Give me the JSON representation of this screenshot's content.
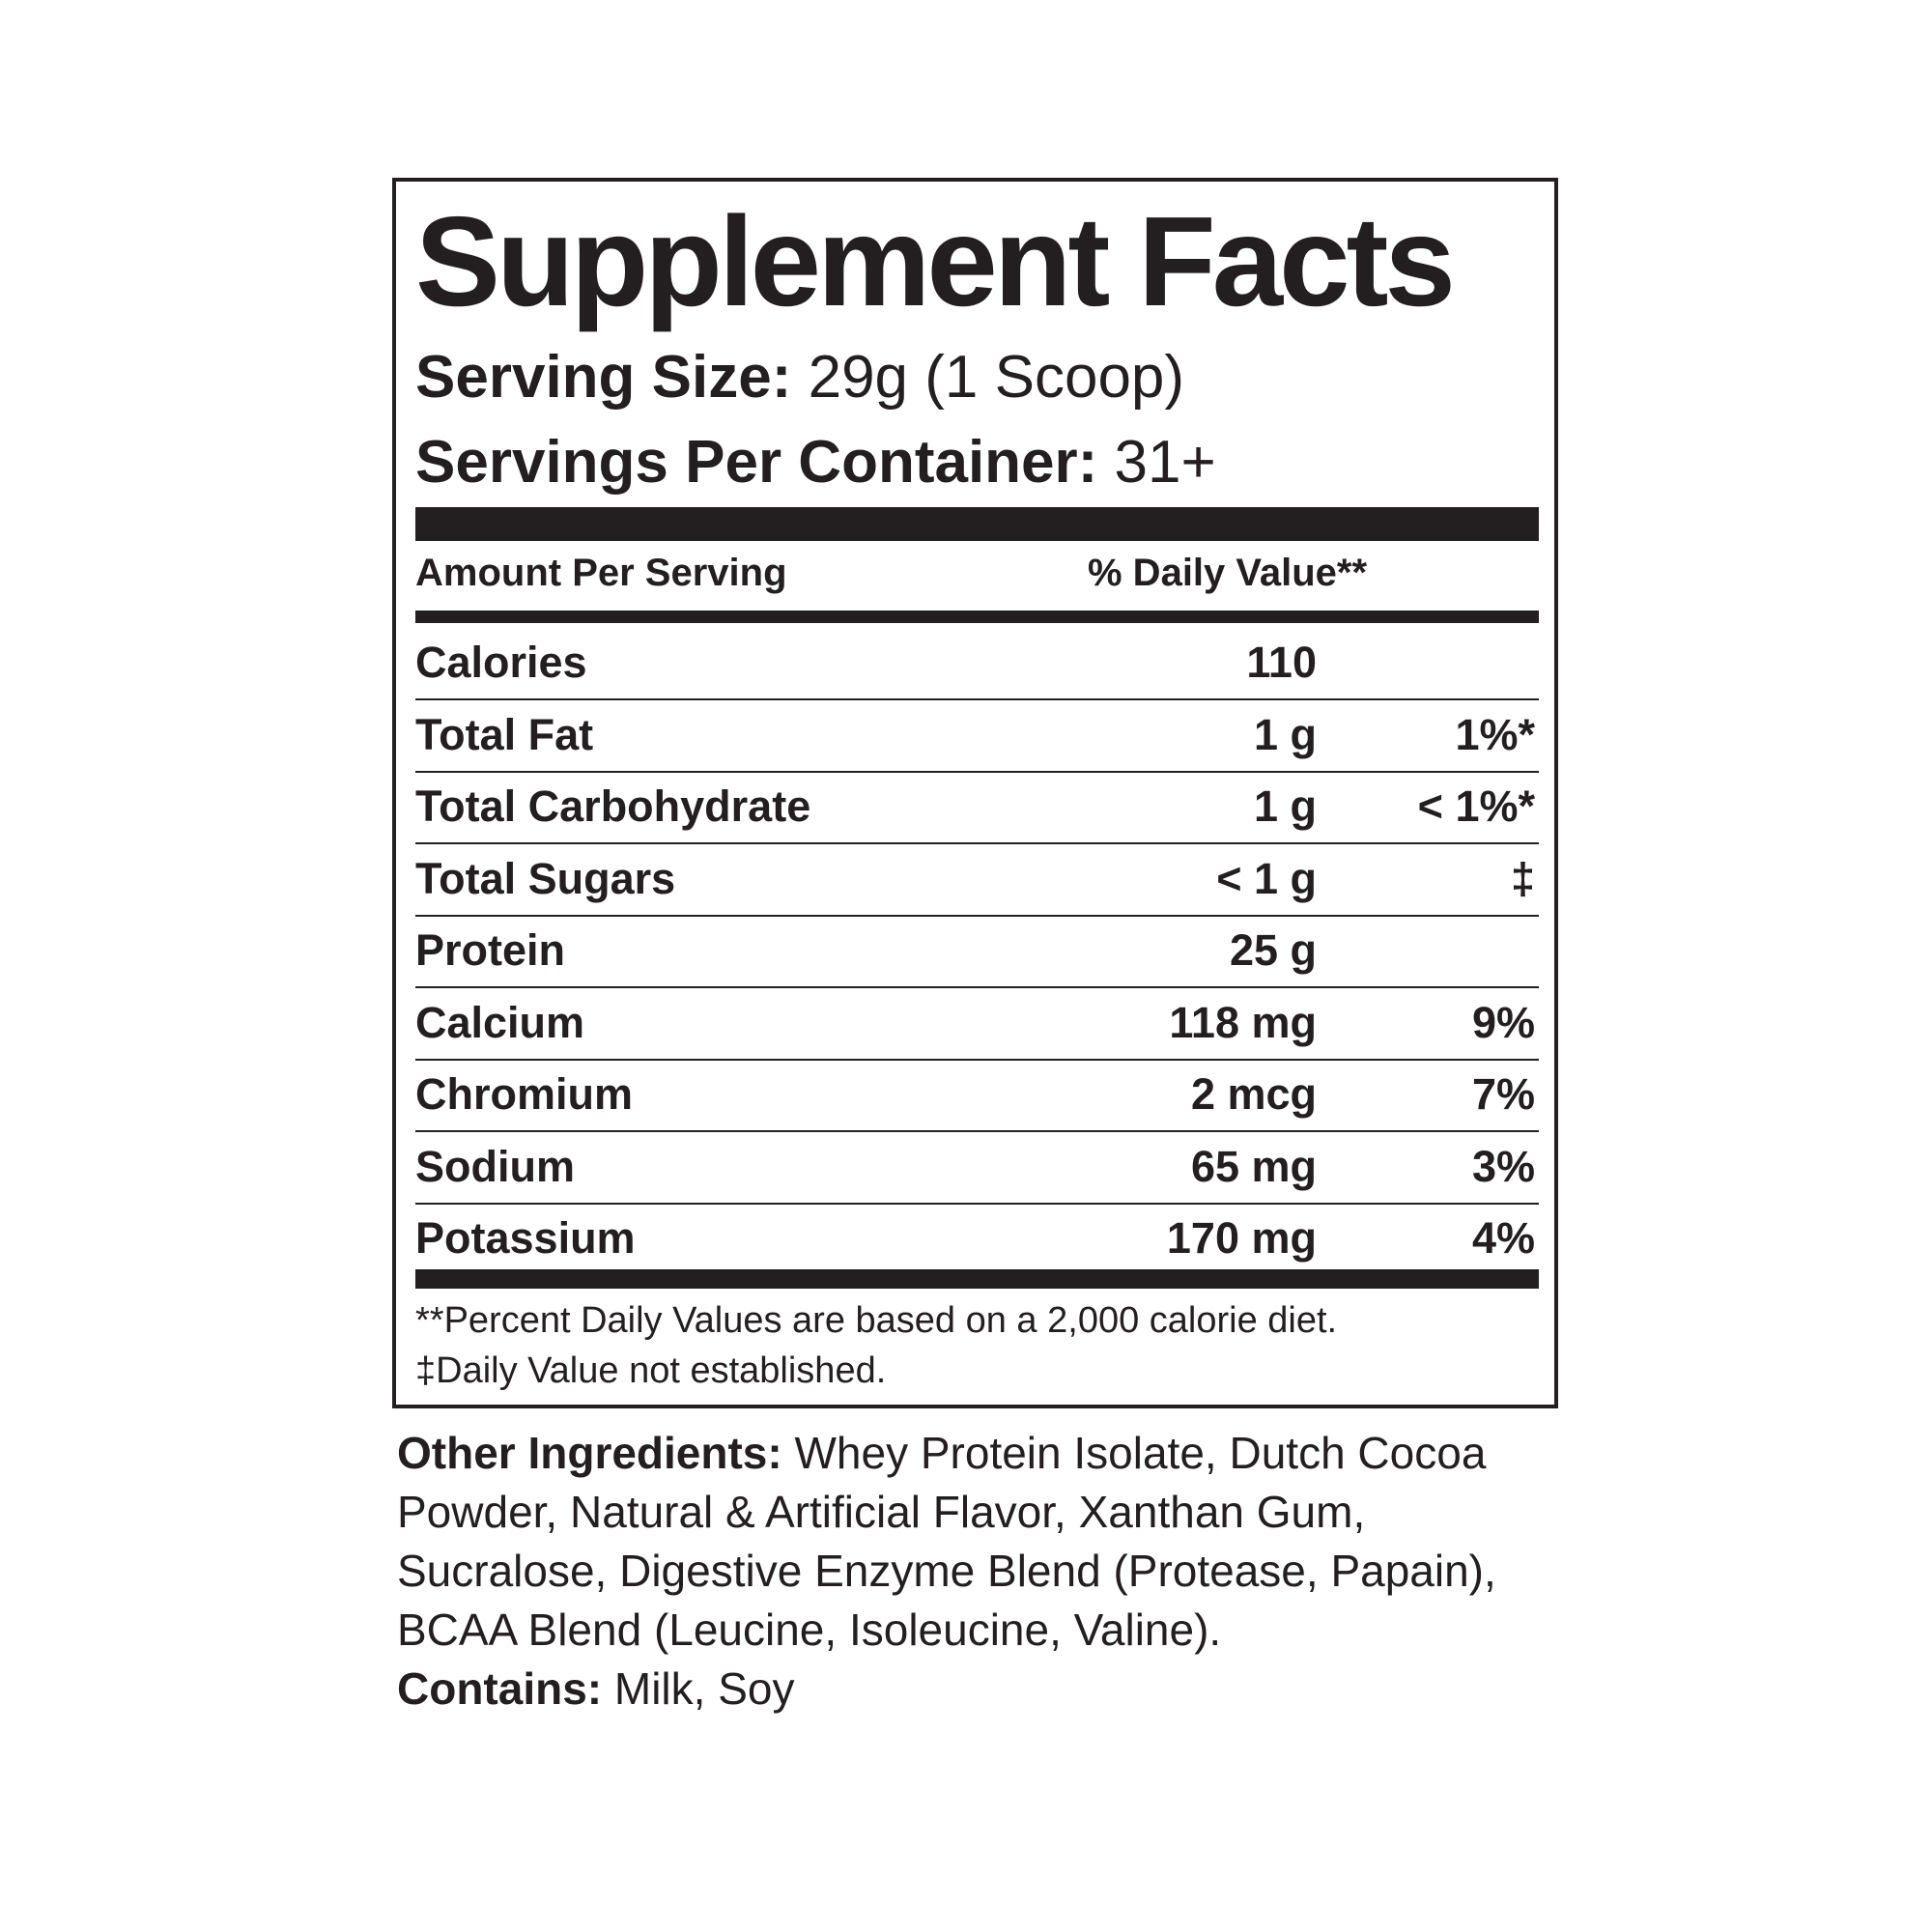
{
  "label": {
    "title": "Supplement Facts",
    "serving_size_label": "Serving Size:",
    "serving_size_value": "29g (1 Scoop)",
    "servings_per_container_label": "Servings Per Container:",
    "servings_per_container_value": "31+",
    "header_amount": "Amount Per Serving",
    "header_dv": "% Daily Value**",
    "rows": [
      {
        "name": "Calories",
        "amount": "110",
        "dv": ""
      },
      {
        "name": "Total Fat",
        "amount": "1 g",
        "dv": "1%*"
      },
      {
        "name": "Total Carbohydrate",
        "amount": "1 g",
        "dv": "< 1%*"
      },
      {
        "name": "Total Sugars",
        "amount": "< 1 g",
        "dv": "‡"
      },
      {
        "name": "Protein",
        "amount": "25 g",
        "dv": ""
      },
      {
        "name": "Calcium",
        "amount": "118 mg",
        "dv": "9%"
      },
      {
        "name": "Chromium",
        "amount": "2 mcg",
        "dv": "7%"
      },
      {
        "name": "Sodium",
        "amount": "65 mg",
        "dv": "3%"
      },
      {
        "name": "Potassium",
        "amount": "170 mg",
        "dv": "4%"
      }
    ],
    "footnote_1": "**Percent Daily Values are based on a 2,000 calorie diet.",
    "footnote_2": "‡Daily Value not established."
  },
  "ingredients": {
    "label": "Other Ingredients:",
    "text": " Whey Protein Isolate, Dutch Cocoa Powder, Natural & Artificial Flavor, Xanthan Gum, Sucralose, Digestive Enzyme Blend (Protease, Papain), BCAA Blend (Leucine, Isoleucine, Valine).",
    "contains_label": "Contains:",
    "contains_text": " Milk, Soy"
  }
}
